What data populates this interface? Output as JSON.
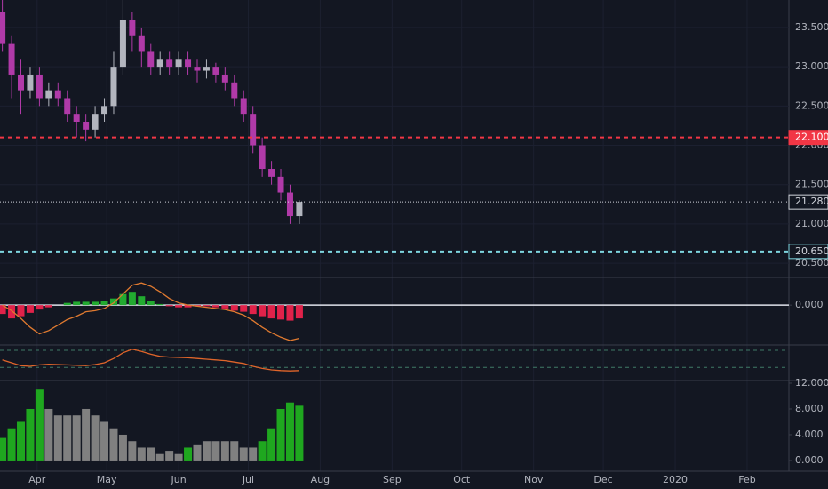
{
  "chart_data": [
    {
      "type": "candlestick",
      "x": [
        -3,
        1,
        5,
        9,
        13,
        17,
        21,
        25,
        29,
        33,
        37,
        41,
        45,
        49,
        53,
        57,
        61,
        65,
        69,
        73,
        77,
        81,
        85,
        89,
        93,
        97,
        101,
        105,
        109,
        113,
        117,
        121,
        125
      ],
      "open": [
        23.7,
        23.3,
        22.9,
        22.7,
        22.9,
        22.6,
        22.7,
        22.6,
        22.4,
        22.3,
        22.2,
        22.4,
        22.5,
        23.0,
        23.6,
        23.4,
        23.2,
        23.0,
        23.1,
        23.0,
        23.1,
        23.0,
        22.95,
        23.0,
        22.9,
        22.8,
        22.6,
        22.4,
        22.0,
        21.7,
        21.6,
        21.4,
        21.1
      ],
      "close": [
        23.3,
        22.9,
        22.7,
        22.9,
        22.6,
        22.7,
        22.6,
        22.4,
        22.3,
        22.2,
        22.4,
        22.5,
        23.0,
        23.6,
        23.4,
        23.2,
        23.0,
        23.1,
        23.0,
        23.1,
        23.0,
        22.95,
        23.0,
        22.9,
        22.8,
        22.6,
        22.4,
        22.0,
        21.7,
        21.6,
        21.4,
        21.1,
        21.28
      ],
      "high": [
        23.85,
        23.4,
        23.1,
        23.0,
        23.0,
        22.8,
        22.8,
        22.7,
        22.5,
        22.4,
        22.5,
        22.6,
        23.2,
        23.85,
        23.7,
        23.5,
        23.3,
        23.2,
        23.2,
        23.2,
        23.2,
        23.1,
        23.1,
        23.05,
        23.0,
        22.9,
        22.7,
        22.5,
        22.1,
        21.8,
        21.7,
        21.5,
        21.3
      ],
      "low": [
        23.2,
        22.6,
        22.4,
        22.6,
        22.5,
        22.5,
        22.5,
        22.3,
        22.1,
        22.05,
        22.1,
        22.3,
        22.4,
        22.9,
        23.2,
        23.0,
        22.9,
        22.9,
        22.9,
        22.9,
        22.9,
        22.8,
        22.85,
        22.8,
        22.7,
        22.5,
        22.3,
        21.9,
        21.6,
        21.5,
        21.3,
        21.0,
        21.0
      ],
      "up_color": "#b2b5be",
      "down_color": "#b03aa8",
      "xlim": [
        -4,
        336
      ],
      "xticks": [
        {
          "value": 12,
          "label": "Apr"
        },
        {
          "value": 42,
          "label": "May"
        },
        {
          "value": 73,
          "label": "Jun"
        },
        {
          "value": 103,
          "label": "Jul"
        },
        {
          "value": 134,
          "label": "Aug"
        },
        {
          "value": 165,
          "label": "Sep"
        },
        {
          "value": 195,
          "label": "Oct"
        },
        {
          "value": 226,
          "label": "Nov"
        },
        {
          "value": 256,
          "label": "Dec"
        },
        {
          "value": 287,
          "label": "2020"
        },
        {
          "value": 318,
          "label": "Feb"
        }
      ],
      "ylim": [
        20.32,
        23.85
      ],
      "yticks": [
        {
          "value": 20.5,
          "label": "20.500"
        },
        {
          "value": 21,
          "label": "21.000"
        },
        {
          "value": 21.5,
          "label": "21.500"
        },
        {
          "value": 22,
          "label": "22.000"
        },
        {
          "value": 22.5,
          "label": "22.500"
        },
        {
          "value": 23,
          "label": "23.000"
        },
        {
          "value": 23.5,
          "label": "23.500"
        }
      ],
      "hlines": [
        {
          "value": 22.1,
          "label": "22.100",
          "color": "#f23645",
          "style": "dashed"
        },
        {
          "value": 21.28,
          "label": "21.280",
          "color": "#d1d4dc",
          "style": "dotted"
        },
        {
          "value": 20.65,
          "label": "20.650",
          "color": "#7ed6df",
          "style": "dashed"
        }
      ],
      "grid": true
    },
    {
      "type": "macd",
      "x": [
        -3,
        1,
        5,
        9,
        13,
        17,
        21,
        25,
        29,
        33,
        37,
        41,
        45,
        49,
        53,
        57,
        61,
        65,
        69,
        73,
        77,
        81,
        85,
        89,
        93,
        97,
        101,
        105,
        109,
        113,
        117,
        121,
        125
      ],
      "histogram": [
        -0.08,
        -0.12,
        -0.1,
        -0.07,
        -0.04,
        -0.02,
        0.0,
        0.02,
        0.03,
        0.03,
        0.03,
        0.04,
        0.06,
        0.1,
        0.12,
        0.08,
        0.04,
        0.01,
        -0.01,
        -0.02,
        -0.02,
        -0.01,
        -0.01,
        -0.02,
        -0.03,
        -0.05,
        -0.06,
        -0.08,
        -0.1,
        -0.12,
        -0.13,
        -0.14,
        -0.12
      ],
      "line": [
        0.0,
        -0.05,
        -0.12,
        -0.2,
        -0.26,
        -0.23,
        -0.18,
        -0.13,
        -0.1,
        -0.06,
        -0.05,
        -0.03,
        0.02,
        0.1,
        0.18,
        0.2,
        0.17,
        0.12,
        0.06,
        0.02,
        0.0,
        -0.01,
        -0.02,
        -0.03,
        -0.04,
        -0.06,
        -0.09,
        -0.14,
        -0.2,
        -0.25,
        -0.29,
        -0.32,
        -0.3
      ],
      "pos_color": "#22ab30",
      "neg_color": "#e0224a",
      "line_color": "#e07a30",
      "xlim": [
        -4,
        336
      ],
      "ylim": [
        -0.36,
        0.25
      ],
      "yticks": [
        {
          "value": 0,
          "label": "0.000"
        }
      ]
    },
    {
      "type": "line",
      "x": [
        -3,
        1,
        5,
        9,
        13,
        17,
        21,
        25,
        29,
        33,
        37,
        41,
        45,
        49,
        53,
        57,
        61,
        65,
        69,
        73,
        77,
        81,
        85,
        89,
        93,
        97,
        101,
        105,
        109,
        113,
        117,
        121,
        125
      ],
      "values": [
        58,
        50,
        42,
        40,
        44,
        46,
        45,
        44,
        43,
        42,
        45,
        50,
        62,
        78,
        88,
        82,
        74,
        68,
        66,
        65,
        64,
        62,
        60,
        58,
        56,
        52,
        48,
        40,
        34,
        30,
        28,
        27,
        28
      ],
      "color": "#e0652a",
      "levels": [
        85,
        37
      ],
      "level_color": "#3f7a66",
      "xlim": [
        -4,
        336
      ],
      "ylim": [
        0,
        100
      ]
    },
    {
      "type": "bar",
      "x": [
        -3,
        1,
        5,
        9,
        13,
        17,
        21,
        25,
        29,
        33,
        37,
        41,
        45,
        49,
        53,
        57,
        61,
        65,
        69,
        73,
        77,
        81,
        85,
        89,
        93,
        97,
        101,
        105,
        109,
        113,
        117,
        121,
        125
      ],
      "values": [
        3.5,
        5,
        6,
        8,
        11,
        8,
        7,
        7,
        7,
        8,
        7,
        6,
        5,
        4,
        3,
        2,
        2,
        1,
        1.5,
        1,
        2,
        2.5,
        3,
        3,
        3,
        3,
        2,
        2,
        3,
        5,
        8,
        9,
        8.5
      ],
      "colors": [
        "#1fa71f",
        "#1fa71f",
        "#1fa71f",
        "#1fa71f",
        "#1fa71f",
        "#808080",
        "#808080",
        "#808080",
        "#808080",
        "#808080",
        "#808080",
        "#808080",
        "#808080",
        "#808080",
        "#808080",
        "#808080",
        "#808080",
        "#808080",
        "#808080",
        "#808080",
        "#1fa71f",
        "#808080",
        "#808080",
        "#808080",
        "#808080",
        "#808080",
        "#808080",
        "#808080",
        "#1fa71f",
        "#1fa71f",
        "#1fa71f",
        "#1fa71f",
        "#1fa71f"
      ],
      "xlim": [
        -4,
        336
      ],
      "ylim": [
        -1.66,
        12.41
      ],
      "yticks": [
        {
          "value": 0,
          "label": "0.000"
        },
        {
          "value": 4,
          "label": "4.000"
        },
        {
          "value": 8,
          "label": "8.000"
        },
        {
          "value": 12,
          "label": "12.000"
        }
      ]
    }
  ]
}
